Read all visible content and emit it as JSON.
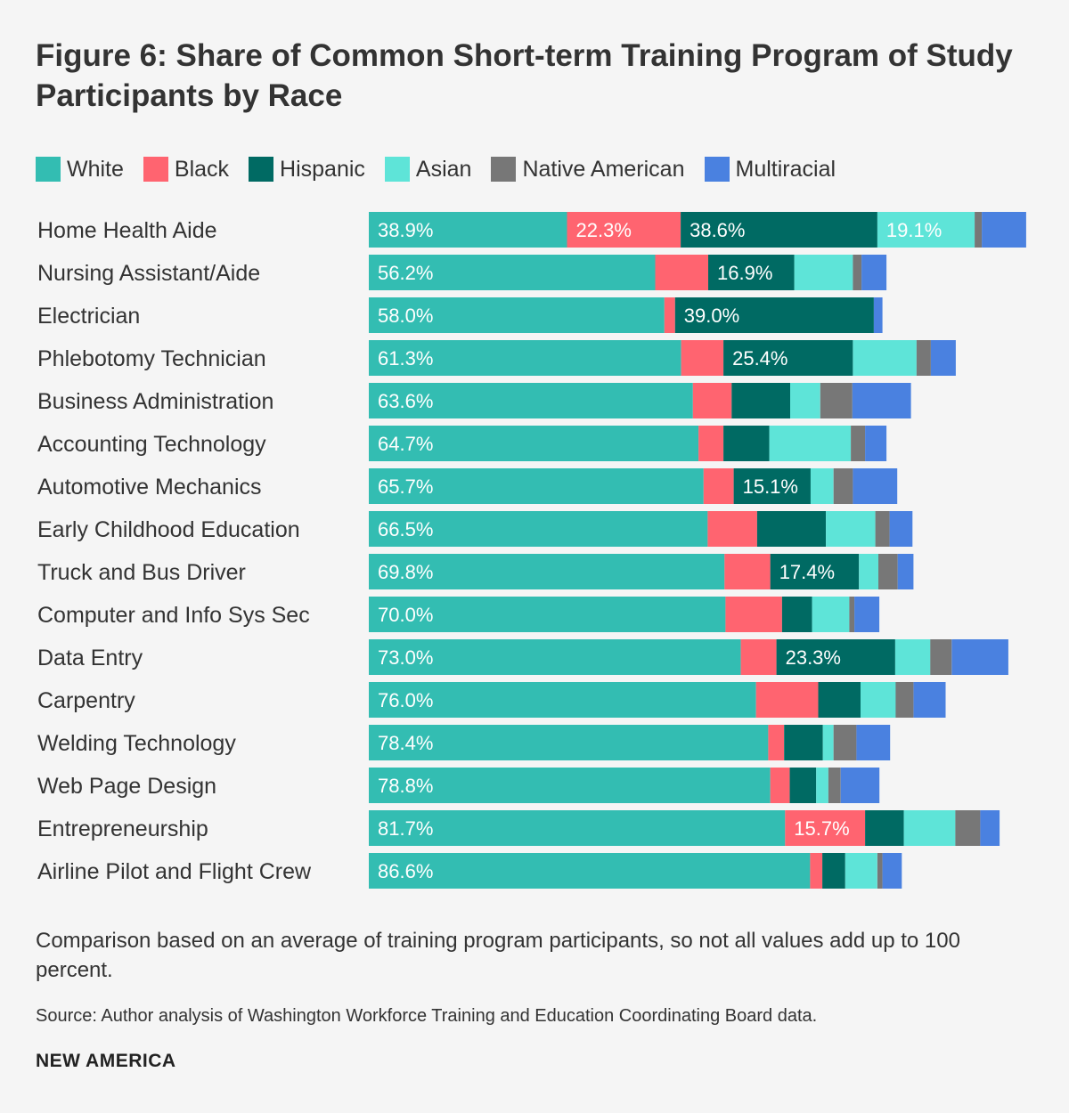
{
  "title": "Figure 6: Share of Common Short-term Training Program of Study Participants by Race",
  "note": "Comparison based on an average of training program participants, so not all values add up to 100 percent.",
  "source": "Source: Author analysis of Washington Workforce Training and Education Coordinating Board data.",
  "brand": "NEW AMERICA",
  "chart_data": {
    "type": "bar",
    "orientation": "horizontal",
    "stacked": true,
    "legend": "top-left",
    "grid": false,
    "xlim": [
      0,
      130
    ],
    "categories": [
      "Home Health Aide",
      "Nursing Assistant/Aide",
      "Electrician",
      "Phlebotomy Technician",
      "Business Administration",
      "Accounting Technology",
      "Automotive Mechanics",
      "Early Childhood Education",
      "Truck and Bus Driver",
      "Computer and Info Sys Sec",
      "Data Entry",
      "Carpentry",
      "Welding Technology",
      "Web Page Design",
      "Entrepreneurship",
      "Airline Pilot and Flight Crew"
    ],
    "series": [
      {
        "name": "White",
        "color": "#33bdb2",
        "values": [
          38.9,
          56.2,
          58.0,
          61.3,
          63.6,
          64.7,
          65.7,
          66.5,
          69.8,
          70.0,
          73.0,
          76.0,
          78.4,
          78.8,
          81.7,
          86.6
        ],
        "labels": [
          "38.9%",
          "56.2%",
          "58.0%",
          "61.3%",
          "63.6%",
          "64.7%",
          "65.7%",
          "66.5%",
          "69.8%",
          "70.0%",
          "73.0%",
          "76.0%",
          "78.4%",
          "78.8%",
          "81.7%",
          "86.6%"
        ]
      },
      {
        "name": "Black",
        "color": "#ff6470",
        "values": [
          22.3,
          10.4,
          2.1,
          8.3,
          7.6,
          4.9,
          5.9,
          9.7,
          9.0,
          11.1,
          7.0,
          12.2,
          3.1,
          3.8,
          15.7,
          2.4
        ],
        "labels": [
          "22.3%",
          "",
          "",
          "",
          "",
          "",
          "",
          "",
          "",
          "",
          "",
          "",
          "",
          "",
          "15.7%",
          ""
        ]
      },
      {
        "name": "Hispanic",
        "color": "#006a63",
        "values": [
          38.6,
          16.9,
          39.0,
          25.4,
          11.5,
          9.0,
          15.1,
          13.5,
          17.4,
          5.9,
          23.3,
          8.3,
          7.6,
          5.2,
          7.6,
          4.5
        ],
        "labels": [
          "38.6%",
          "16.9%",
          "39.0%",
          "25.4%",
          "",
          "",
          "15.1%",
          "",
          "17.4%",
          "",
          "23.3%",
          "",
          "",
          "",
          "",
          ""
        ]
      },
      {
        "name": "Asian",
        "color": "#5ee4d8",
        "values": [
          19.1,
          11.5,
          0,
          12.5,
          5.9,
          16.0,
          4.5,
          9.7,
          3.8,
          7.3,
          6.9,
          6.9,
          2.1,
          2.4,
          10.1,
          6.3
        ],
        "labels": [
          "19.1%",
          "",
          "",
          "",
          "",
          "",
          "",
          "",
          "",
          "",
          "",
          "",
          "",
          "",
          "",
          ""
        ]
      },
      {
        "name": "Native American",
        "color": "#777777",
        "values": [
          1.4,
          1.7,
          0,
          2.8,
          6.3,
          2.8,
          3.8,
          2.8,
          3.8,
          1.0,
          4.2,
          3.5,
          4.5,
          2.4,
          4.9,
          1.0
        ],
        "labels": [
          "",
          "",
          "",
          "",
          "",
          "",
          "",
          "",
          "",
          "",
          "",
          "",
          "",
          "",
          "",
          ""
        ]
      },
      {
        "name": "Multiracial",
        "color": "#4a81e0",
        "values": [
          8.7,
          4.9,
          1.7,
          4.9,
          11.5,
          4.2,
          8.7,
          4.5,
          3.1,
          4.9,
          11.1,
          6.3,
          6.6,
          7.6,
          3.8,
          3.8
        ],
        "labels": [
          "",
          "",
          "",
          "",
          "",
          "",
          "",
          "",
          "",
          "",
          "",
          "",
          "",
          "",
          "",
          ""
        ]
      }
    ]
  }
}
